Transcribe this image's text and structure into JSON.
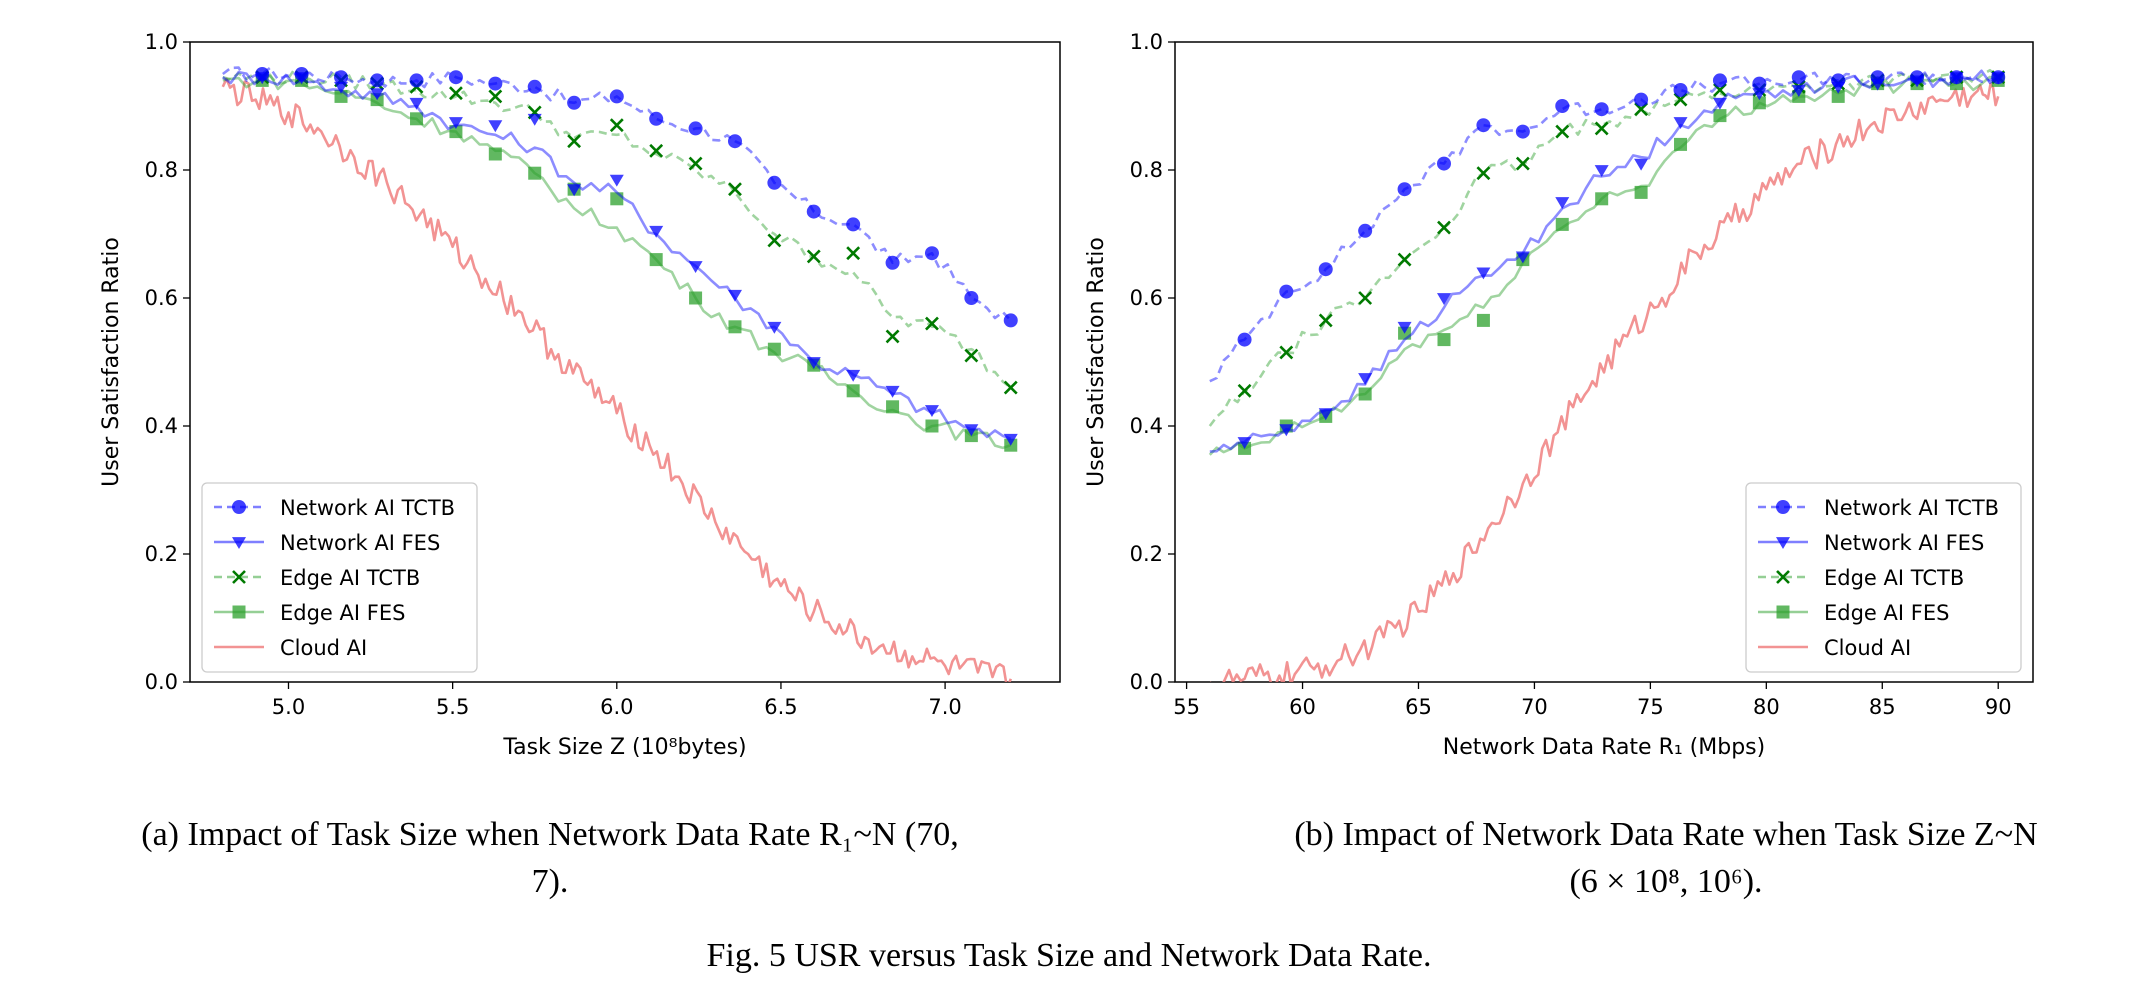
{
  "figure_caption": "Fig. 5 USR versus Task Size and Network Data Rate.",
  "chart_data": [
    {
      "type": "line",
      "caption_line1": "(a) Impact of Task Size when Network Data Rate R₁~N (70,",
      "caption_line2": "7).",
      "xlabel": "Task Size Z (10⁸bytes)",
      "ylabel": "User Satisfaction Ratio",
      "xlim": [
        4.7,
        7.35
      ],
      "ylim": [
        0.0,
        1.0
      ],
      "xticks": [
        5.0,
        5.5,
        6.0,
        6.5,
        7.0
      ],
      "xtick_labels": [
        "5.0",
        "5.5",
        "6.0",
        "6.5",
        "7.0"
      ],
      "yticks": [
        0.0,
        0.2,
        0.4,
        0.6,
        0.8,
        1.0
      ],
      "ytick_labels": [
        "0.0",
        "0.2",
        "0.4",
        "0.6",
        "0.8",
        "1.0"
      ],
      "grid": false,
      "legend_position": "lower-left",
      "series": [
        {
          "name": "Network AI TCTB",
          "color": "#0000ff",
          "dash": "8,5",
          "marker": "circle",
          "x": [
            4.8,
            4.92,
            5.04,
            5.16,
            5.27,
            5.39,
            5.51,
            5.63,
            5.75,
            5.87,
            6.0,
            6.12,
            6.24,
            6.36,
            6.48,
            6.6,
            6.72,
            6.84,
            6.96,
            7.08,
            7.2
          ],
          "y": [
            0.95,
            0.95,
            0.95,
            0.945,
            0.94,
            0.94,
            0.945,
            0.935,
            0.93,
            0.905,
            0.915,
            0.88,
            0.865,
            0.845,
            0.78,
            0.735,
            0.715,
            0.655,
            0.67,
            0.6,
            0.565
          ],
          "marker_x": [
            4.92,
            5.04,
            5.16,
            5.27,
            5.39,
            5.51,
            5.63,
            5.75,
            5.87,
            6.0,
            6.12,
            6.24,
            6.36,
            6.48,
            6.6,
            6.72,
            6.84,
            6.96,
            7.08,
            7.2
          ],
          "marker_y": [
            0.95,
            0.95,
            0.945,
            0.94,
            0.94,
            0.945,
            0.935,
            0.93,
            0.905,
            0.915,
            0.88,
            0.865,
            0.845,
            0.78,
            0.735,
            0.715,
            0.655,
            0.67,
            0.6,
            0.565
          ]
        },
        {
          "name": "Network AI FES",
          "color": "#0000ff",
          "dash": "",
          "marker": "triangle-down",
          "x": [
            4.8,
            4.92,
            5.04,
            5.16,
            5.27,
            5.39,
            5.51,
            5.63,
            5.75,
            5.87,
            6.0,
            6.12,
            6.24,
            6.36,
            6.48,
            6.6,
            6.72,
            6.84,
            6.96,
            7.08,
            7.2
          ],
          "y": [
            0.945,
            0.945,
            0.94,
            0.925,
            0.915,
            0.9,
            0.87,
            0.855,
            0.835,
            0.78,
            0.765,
            0.7,
            0.65,
            0.6,
            0.555,
            0.5,
            0.48,
            0.45,
            0.42,
            0.395,
            0.38
          ],
          "marker_x": [
            4.92,
            5.04,
            5.16,
            5.27,
            5.39,
            5.51,
            5.63,
            5.75,
            5.87,
            6.0,
            6.12,
            6.24,
            6.36,
            6.48,
            6.6,
            6.72,
            6.84,
            6.96,
            7.08,
            7.2
          ],
          "marker_y": [
            0.945,
            0.945,
            0.93,
            0.92,
            0.905,
            0.875,
            0.87,
            0.88,
            0.77,
            0.785,
            0.705,
            0.65,
            0.605,
            0.555,
            0.5,
            0.48,
            0.455,
            0.425,
            0.395,
            0.38
          ]
        },
        {
          "name": "Edge AI TCTB",
          "color": "#2ca02c",
          "dash": "8,5",
          "marker": "x",
          "x": [
            4.8,
            4.92,
            5.04,
            5.16,
            5.27,
            5.39,
            5.51,
            5.63,
            5.75,
            5.87,
            6.0,
            6.12,
            6.24,
            6.36,
            6.48,
            6.6,
            6.72,
            6.84,
            6.96,
            7.08,
            7.2
          ],
          "y": [
            0.945,
            0.945,
            0.945,
            0.94,
            0.935,
            0.925,
            0.915,
            0.905,
            0.89,
            0.85,
            0.855,
            0.825,
            0.8,
            0.765,
            0.7,
            0.665,
            0.64,
            0.57,
            0.555,
            0.52,
            0.46
          ],
          "marker_x": [
            4.92,
            5.04,
            5.16,
            5.27,
            5.39,
            5.51,
            5.63,
            5.75,
            5.87,
            6.0,
            6.12,
            6.24,
            6.36,
            6.48,
            6.6,
            6.72,
            6.84,
            6.96,
            7.08,
            7.2
          ],
          "marker_y": [
            0.945,
            0.945,
            0.94,
            0.935,
            0.93,
            0.92,
            0.915,
            0.89,
            0.845,
            0.87,
            0.83,
            0.81,
            0.77,
            0.69,
            0.665,
            0.67,
            0.54,
            0.56,
            0.51,
            0.46
          ]
        },
        {
          "name": "Edge AI FES",
          "color": "#2ca02c",
          "dash": "",
          "marker": "square",
          "x": [
            4.8,
            4.92,
            5.04,
            5.16,
            5.27,
            5.39,
            5.51,
            5.63,
            5.75,
            5.87,
            6.0,
            6.12,
            6.24,
            6.36,
            6.48,
            6.6,
            6.72,
            6.84,
            6.96,
            7.08,
            7.2
          ],
          "y": [
            0.94,
            0.94,
            0.935,
            0.92,
            0.905,
            0.88,
            0.86,
            0.83,
            0.795,
            0.74,
            0.71,
            0.66,
            0.6,
            0.555,
            0.515,
            0.49,
            0.455,
            0.425,
            0.4,
            0.385,
            0.37
          ],
          "marker_x": [
            4.92,
            5.04,
            5.16,
            5.27,
            5.39,
            5.51,
            5.63,
            5.75,
            5.87,
            6.0,
            6.12,
            6.24,
            6.36,
            6.48,
            6.6,
            6.72,
            6.84,
            6.96,
            7.08,
            7.2
          ],
          "marker_y": [
            0.94,
            0.94,
            0.915,
            0.91,
            0.88,
            0.86,
            0.825,
            0.795,
            0.77,
            0.755,
            0.66,
            0.6,
            0.555,
            0.52,
            0.495,
            0.455,
            0.43,
            0.4,
            0.385,
            0.37
          ]
        },
        {
          "name": "Cloud AI",
          "color": "#f08080",
          "dash": "",
          "marker": "none",
          "x": [
            4.8,
            4.9,
            5.0,
            5.1,
            5.2,
            5.3,
            5.4,
            5.5,
            5.6,
            5.7,
            5.8,
            5.9,
            6.0,
            6.1,
            6.2,
            6.3,
            6.4,
            6.5,
            6.6,
            6.7,
            6.8,
            6.9,
            7.0,
            7.1,
            7.2
          ],
          "y": [
            0.93,
            0.91,
            0.89,
            0.86,
            0.82,
            0.78,
            0.73,
            0.68,
            0.63,
            0.58,
            0.52,
            0.47,
            0.42,
            0.37,
            0.31,
            0.25,
            0.2,
            0.15,
            0.11,
            0.08,
            0.055,
            0.04,
            0.025,
            0.015,
            0.005
          ]
        }
      ]
    },
    {
      "type": "line",
      "caption_line1": "(b) Impact of Network Data Rate when Task Size Z~N",
      "caption_line2": "(6 × 10⁸, 10⁶).",
      "xlabel": "Network Data Rate R₁ (Mbps)",
      "ylabel": "User Satisfaction Ratio",
      "xlim": [
        54.5,
        91.5
      ],
      "ylim": [
        0.0,
        1.0
      ],
      "xticks": [
        55,
        60,
        65,
        70,
        75,
        80,
        85,
        90
      ],
      "xtick_labels": [
        "55",
        "60",
        "65",
        "70",
        "75",
        "80",
        "85",
        "90"
      ],
      "yticks": [
        0.0,
        0.2,
        0.4,
        0.6,
        0.8,
        1.0
      ],
      "ytick_labels": [
        "0.0",
        "0.2",
        "0.4",
        "0.6",
        "0.8",
        "1.0"
      ],
      "grid": false,
      "legend_position": "lower-right",
      "series": [
        {
          "name": "Network AI TCTB",
          "color": "#0000ff",
          "dash": "8,5",
          "marker": "circle",
          "x": [
            56.0,
            57.5,
            59.3,
            61.0,
            62.7,
            64.4,
            66.1,
            67.8,
            69.5,
            71.2,
            72.9,
            74.6,
            76.3,
            78.0,
            79.7,
            81.4,
            83.1,
            84.8,
            86.5,
            88.2,
            90.0
          ],
          "y": [
            0.47,
            0.535,
            0.61,
            0.645,
            0.705,
            0.77,
            0.81,
            0.87,
            0.86,
            0.895,
            0.895,
            0.91,
            0.925,
            0.935,
            0.935,
            0.94,
            0.94,
            0.945,
            0.945,
            0.945,
            0.945
          ],
          "marker_x": [
            57.5,
            59.3,
            61.0,
            62.7,
            64.4,
            66.1,
            67.8,
            69.5,
            71.2,
            72.9,
            74.6,
            76.3,
            78.0,
            79.7,
            81.4,
            83.1,
            84.8,
            86.5,
            88.2,
            90.0
          ],
          "marker_y": [
            0.535,
            0.61,
            0.645,
            0.705,
            0.77,
            0.81,
            0.87,
            0.86,
            0.9,
            0.895,
            0.91,
            0.925,
            0.94,
            0.935,
            0.945,
            0.94,
            0.945,
            0.945,
            0.945,
            0.945
          ]
        },
        {
          "name": "Network AI FES",
          "color": "#0000ff",
          "dash": "",
          "marker": "triangle-down",
          "x": [
            56.0,
            57.5,
            59.3,
            61.0,
            62.7,
            64.4,
            66.1,
            67.8,
            69.5,
            71.2,
            72.9,
            74.6,
            76.3,
            78.0,
            79.7,
            81.4,
            83.1,
            84.8,
            86.5,
            88.2,
            90.0
          ],
          "y": [
            0.36,
            0.375,
            0.395,
            0.425,
            0.465,
            0.535,
            0.585,
            0.635,
            0.67,
            0.74,
            0.79,
            0.82,
            0.87,
            0.905,
            0.92,
            0.93,
            0.935,
            0.94,
            0.94,
            0.945,
            0.945
          ],
          "marker_x": [
            57.5,
            59.3,
            61.0,
            62.7,
            64.4,
            66.1,
            67.8,
            69.5,
            71.2,
            72.9,
            74.6,
            76.3,
            78.0,
            79.7,
            81.4,
            83.1,
            84.8,
            86.5,
            88.2,
            90.0
          ],
          "marker_y": [
            0.375,
            0.395,
            0.42,
            0.475,
            0.555,
            0.6,
            0.64,
            0.665,
            0.75,
            0.8,
            0.81,
            0.875,
            0.905,
            0.92,
            0.925,
            0.93,
            0.935,
            0.94,
            0.945,
            0.945
          ]
        },
        {
          "name": "Edge AI TCTB",
          "color": "#2ca02c",
          "dash": "8,5",
          "marker": "x",
          "x": [
            56.0,
            57.5,
            59.3,
            61.0,
            62.7,
            64.4,
            66.1,
            67.8,
            69.5,
            71.2,
            72.9,
            74.6,
            76.3,
            78.0,
            79.7,
            81.4,
            83.1,
            84.8,
            86.5,
            88.2,
            90.0
          ],
          "y": [
            0.4,
            0.455,
            0.515,
            0.565,
            0.6,
            0.66,
            0.71,
            0.795,
            0.81,
            0.86,
            0.87,
            0.895,
            0.91,
            0.92,
            0.925,
            0.93,
            0.935,
            0.94,
            0.94,
            0.945,
            0.945
          ],
          "marker_x": [
            57.5,
            59.3,
            61.0,
            62.7,
            64.4,
            66.1,
            67.8,
            69.5,
            71.2,
            72.9,
            74.6,
            76.3,
            78.0,
            79.7,
            81.4,
            83.1,
            84.8,
            86.5,
            88.2,
            90.0
          ],
          "marker_y": [
            0.455,
            0.515,
            0.565,
            0.6,
            0.66,
            0.71,
            0.795,
            0.81,
            0.86,
            0.865,
            0.895,
            0.91,
            0.925,
            0.925,
            0.93,
            0.935,
            0.94,
            0.94,
            0.945,
            0.945
          ]
        },
        {
          "name": "Edge AI FES",
          "color": "#2ca02c",
          "dash": "",
          "marker": "square",
          "x": [
            56.0,
            57.5,
            59.3,
            61.0,
            62.7,
            64.4,
            66.1,
            67.8,
            69.5,
            71.2,
            72.9,
            74.6,
            76.3,
            78.0,
            79.7,
            81.4,
            83.1,
            84.8,
            86.5,
            88.2,
            90.0
          ],
          "y": [
            0.355,
            0.365,
            0.39,
            0.415,
            0.45,
            0.52,
            0.55,
            0.585,
            0.655,
            0.71,
            0.755,
            0.775,
            0.835,
            0.88,
            0.905,
            0.915,
            0.92,
            0.93,
            0.935,
            0.935,
            0.94
          ],
          "marker_x": [
            57.5,
            59.3,
            61.0,
            62.7,
            64.4,
            66.1,
            67.8,
            69.5,
            71.2,
            72.9,
            74.6,
            76.3,
            78.0,
            79.7,
            81.4,
            83.1,
            84.8,
            86.5,
            88.2,
            90.0
          ],
          "marker_y": [
            0.365,
            0.4,
            0.415,
            0.45,
            0.545,
            0.535,
            0.565,
            0.66,
            0.715,
            0.755,
            0.765,
            0.84,
            0.885,
            0.905,
            0.915,
            0.915,
            0.935,
            0.935,
            0.935,
            0.94
          ]
        },
        {
          "name": "Cloud AI",
          "color": "#f08080",
          "dash": "",
          "marker": "none",
          "x": [
            56,
            57.5,
            59,
            60.5,
            62,
            63.5,
            65,
            66.5,
            68,
            69.5,
            71,
            72.5,
            74,
            75.5,
            77,
            78.5,
            80,
            81.5,
            83,
            84.5,
            86,
            87.5,
            89,
            90
          ],
          "y": [
            0.0,
            0.005,
            0.01,
            0.02,
            0.04,
            0.07,
            0.11,
            0.17,
            0.24,
            0.31,
            0.39,
            0.47,
            0.54,
            0.6,
            0.67,
            0.72,
            0.77,
            0.81,
            0.84,
            0.87,
            0.89,
            0.91,
            0.92,
            0.915
          ]
        }
      ]
    }
  ]
}
